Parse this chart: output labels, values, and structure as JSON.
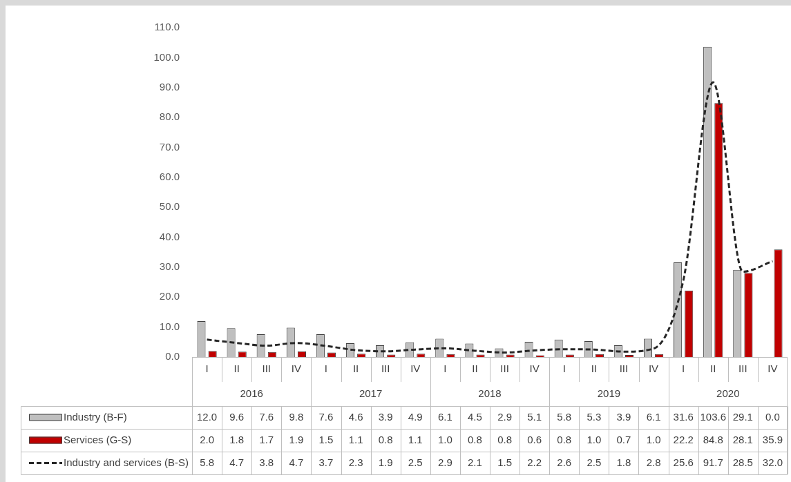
{
  "chart_data": {
    "type": "bar",
    "categories": [
      "I",
      "II",
      "III",
      "IV",
      "I",
      "II",
      "III",
      "IV",
      "I",
      "II",
      "III",
      "IV",
      "I",
      "II",
      "III",
      "IV",
      "I",
      "II",
      "III",
      "IV"
    ],
    "annotations": [
      "2016",
      "2017",
      "2018",
      "2019",
      "2020"
    ],
    "series": [
      {
        "name": "Industry (B-F)",
        "color": "#bfbfbf",
        "values": [
          12.0,
          9.6,
          7.6,
          9.8,
          7.6,
          4.6,
          3.9,
          4.9,
          6.1,
          4.5,
          2.9,
          5.1,
          5.8,
          5.3,
          3.9,
          6.1,
          31.6,
          103.6,
          29.1,
          0.0
        ],
        "value_labels": [
          "12.0",
          "9.6",
          "7.6",
          "9.8",
          "7.6",
          "4.6",
          "3.9",
          "4.9",
          "6.1",
          "4.5",
          "2.9",
          "5.1",
          "5.8",
          "5.3",
          "3.9",
          "6.1",
          "31.6",
          "103.6",
          "29.1",
          "0.0"
        ]
      },
      {
        "name": "Services (G-S)",
        "color": "#c00000",
        "values": [
          2.0,
          1.8,
          1.7,
          1.9,
          1.5,
          1.1,
          0.8,
          1.1,
          1.0,
          0.8,
          0.8,
          0.6,
          0.8,
          1.0,
          0.7,
          1.0,
          22.2,
          84.8,
          28.1,
          35.9
        ],
        "value_labels": [
          "2.0",
          "1.8",
          "1.7",
          "1.9",
          "1.5",
          "1.1",
          "0.8",
          "1.1",
          "1.0",
          "0.8",
          "0.8",
          "0.6",
          "0.8",
          "1.0",
          "0.7",
          "1.0",
          "22.2",
          "84.8",
          "28.1",
          "35.9"
        ]
      },
      {
        "name": "Industry and services (B-S)",
        "type": "line",
        "color": "#262626",
        "line_style": "dashed",
        "marker": "none",
        "values": [
          5.8,
          4.7,
          3.8,
          4.7,
          3.7,
          2.3,
          1.9,
          2.5,
          2.9,
          2.1,
          1.5,
          2.2,
          2.6,
          2.5,
          1.8,
          2.8,
          25.6,
          91.7,
          28.5,
          32.0
        ],
        "value_labels": [
          "5.8",
          "4.7",
          "3.8",
          "4.7",
          "3.7",
          "2.3",
          "1.9",
          "2.5",
          "2.9",
          "2.1",
          "1.5",
          "2.2",
          "2.6",
          "2.5",
          "1.8",
          "2.8",
          "25.6",
          "91.7",
          "28.5",
          "32.0"
        ]
      }
    ],
    "ylim": [
      0,
      110
    ],
    "yticks": [
      {
        "value": 0,
        "label": "0.0"
      },
      {
        "value": 10,
        "label": "10.0"
      },
      {
        "value": 20,
        "label": "20.0"
      },
      {
        "value": 30,
        "label": "30.0"
      },
      {
        "value": 40,
        "label": "40.0"
      },
      {
        "value": 50,
        "label": "50.0"
      },
      {
        "value": 60,
        "label": "60.0"
      },
      {
        "value": 70,
        "label": "70.0"
      },
      {
        "value": 80,
        "label": "80.0"
      },
      {
        "value": 90,
        "label": "90.0"
      },
      {
        "value": 100,
        "label": "100.0"
      },
      {
        "value": 110,
        "label": "110.0"
      }
    ],
    "grid": false,
    "legend": "bottom"
  }
}
